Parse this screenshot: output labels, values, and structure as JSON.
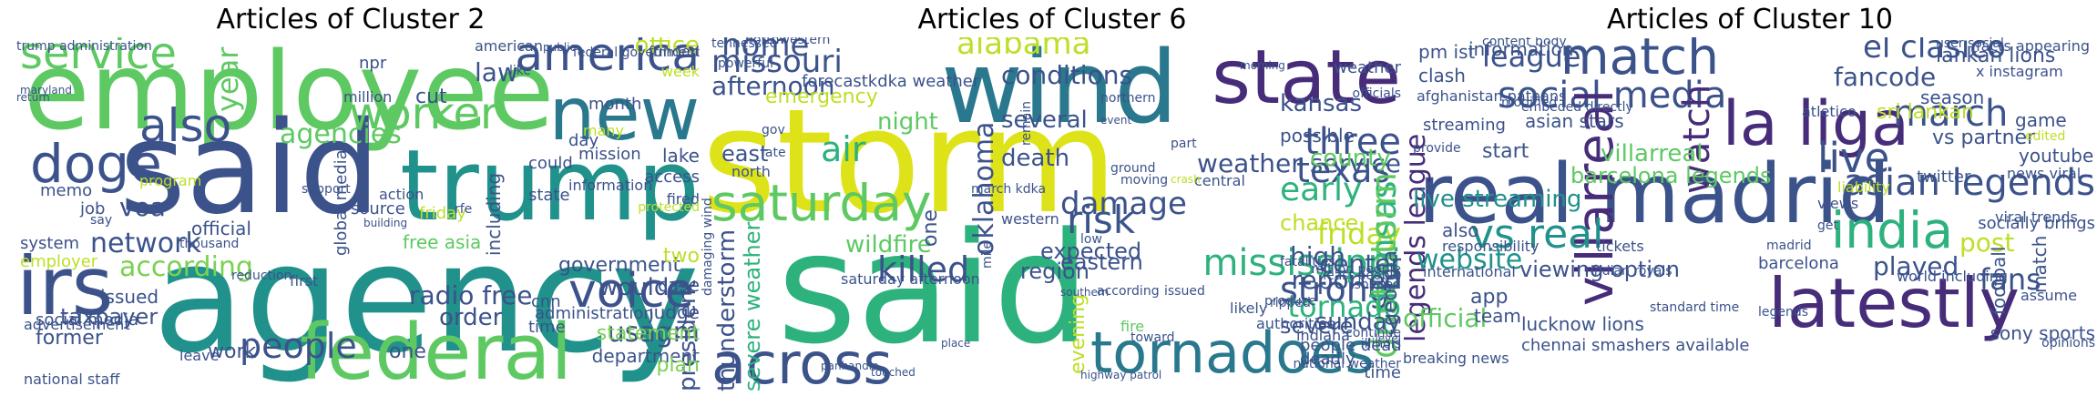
{
  "figure": {
    "panels": [
      {
        "title": "Articles of Cluster 2"
      },
      {
        "title": "Articles of Cluster 6"
      },
      {
        "title": "Articles of Cluster 10"
      }
    ]
  },
  "clouds": {
    "c2": [
      {
        "t": "employee",
        "c": "#5ec962"
      },
      {
        "t": "agency",
        "c": "#21918c"
      },
      {
        "t": "said",
        "c": "#3b528b"
      },
      {
        "t": "trump",
        "c": "#21918c"
      },
      {
        "t": "irs",
        "c": "#3b528b"
      },
      {
        "t": "federal",
        "c": "#5ec962"
      },
      {
        "t": "america",
        "c": "#3b528b"
      },
      {
        "t": "new",
        "c": "#2a788e"
      },
      {
        "t": "service",
        "c": "#5ec962"
      },
      {
        "t": "doge",
        "c": "#3b528b"
      },
      {
        "t": "worker",
        "c": "#5ec962"
      },
      {
        "t": "voice",
        "c": "#3b528b"
      },
      {
        "t": "people",
        "c": "#3b528b"
      },
      {
        "t": "also",
        "c": "#3b528b"
      },
      {
        "t": "government",
        "c": "#3b528b"
      },
      {
        "t": "network",
        "c": "#3b528b"
      },
      {
        "t": "according",
        "c": "#7ad151"
      },
      {
        "t": "agencies",
        "c": "#5ec962"
      },
      {
        "t": "law",
        "c": "#3b528b"
      },
      {
        "t": "office",
        "c": "#bddf26"
      },
      {
        "t": "radio free",
        "c": "#3b528b"
      },
      {
        "t": "order",
        "c": "#3b528b"
      },
      {
        "t": "usagm",
        "c": "#3b528b"
      },
      {
        "t": "would",
        "c": "#3b528b"
      },
      {
        "t": "voa",
        "c": "#3b528b"
      },
      {
        "t": "taxpayer",
        "c": "#3b528b"
      },
      {
        "t": "former",
        "c": "#3b528b"
      },
      {
        "t": "president",
        "c": "#3b528b"
      },
      {
        "t": "including",
        "c": "#3b528b"
      },
      {
        "t": "department",
        "c": "#3b528b"
      },
      {
        "t": "administration",
        "c": "#3b528b"
      },
      {
        "t": "work",
        "c": "#3b528b"
      },
      {
        "t": "one",
        "c": "#3b528b"
      },
      {
        "t": "plan",
        "c": "#7ad151"
      },
      {
        "t": "judge",
        "c": "#3b528b"
      },
      {
        "t": "statement",
        "c": "#7ad151"
      },
      {
        "t": "case",
        "c": "#3b528b"
      },
      {
        "t": "issued",
        "c": "#3b528b"
      },
      {
        "t": "job",
        "c": "#3b528b"
      },
      {
        "t": "memo",
        "c": "#3b528b"
      },
      {
        "t": "employer",
        "c": "#bddf26"
      },
      {
        "t": "system",
        "c": "#3b528b"
      },
      {
        "t": "social media",
        "c": "#3b528b"
      },
      {
        "t": "advertisement",
        "c": "#3b528b"
      },
      {
        "t": "national staff",
        "c": "#3b528b"
      },
      {
        "t": "leave",
        "c": "#3b528b"
      },
      {
        "t": "source",
        "c": "#3b528b"
      },
      {
        "t": "year",
        "c": "#5ec962"
      },
      {
        "t": "cut",
        "c": "#3b528b"
      },
      {
        "t": "month",
        "c": "#3b528b"
      },
      {
        "t": "day",
        "c": "#3b528b"
      },
      {
        "t": "could",
        "c": "#3b528b"
      },
      {
        "t": "state",
        "c": "#3b528b"
      },
      {
        "t": "mission",
        "c": "#3b528b"
      },
      {
        "t": "action",
        "c": "#3b528b"
      },
      {
        "t": "friday",
        "c": "#bddf26"
      },
      {
        "t": "fired",
        "c": "#3b528b"
      },
      {
        "t": "access",
        "c": "#3b528b"
      },
      {
        "t": "lake",
        "c": "#3b528b"
      },
      {
        "t": "two",
        "c": "#bddf26"
      },
      {
        "t": "time",
        "c": "#3b528b"
      },
      {
        "t": "cnn",
        "c": "#3b528b"
      },
      {
        "t": "free asia",
        "c": "#5ec962"
      },
      {
        "t": "global media",
        "c": "#3b528b"
      },
      {
        "t": "first",
        "c": "#3b528b"
      },
      {
        "t": "protected",
        "c": "#bddf26"
      },
      {
        "t": "official",
        "c": "#3b528b"
      },
      {
        "t": "program",
        "c": "#bddf26"
      },
      {
        "t": "american",
        "c": "#3b528b"
      },
      {
        "t": "million",
        "c": "#3b528b"
      },
      {
        "t": "thousand",
        "c": "#3b528b"
      },
      {
        "t": "trump administration",
        "c": "#3b528b"
      },
      {
        "t": "federal government",
        "c": "#3b528b"
      },
      {
        "t": "week",
        "c": "#bddf26"
      },
      {
        "t": "information",
        "c": "#3b528b"
      },
      {
        "t": "like",
        "c": "#3b528b"
      },
      {
        "t": "many",
        "c": "#bddf26"
      },
      {
        "t": "npr",
        "c": "#3b528b"
      },
      {
        "t": "funded",
        "c": "#3b528b"
      },
      {
        "t": "reduction",
        "c": "#3b528b"
      },
      {
        "t": "rfe",
        "c": "#3b528b"
      },
      {
        "t": "public",
        "c": "#3b528b"
      },
      {
        "t": "maryland",
        "c": "#3b528b"
      },
      {
        "t": "say",
        "c": "#3b528b"
      },
      {
        "t": "building",
        "c": "#3b528b"
      },
      {
        "t": "support",
        "c": "#3b528b"
      },
      {
        "t": "return",
        "c": "#3b528b"
      }
    ],
    "c6": [
      {
        "t": "storm",
        "c": "#dde318"
      },
      {
        "t": "said",
        "c": "#2db27d"
      },
      {
        "t": "wind",
        "c": "#2a788e"
      },
      {
        "t": "state",
        "c": "#472c7a"
      },
      {
        "t": "saturday",
        "c": "#5ec962"
      },
      {
        "t": "across",
        "c": "#3b528b"
      },
      {
        "t": "tornadoes",
        "c": "#2a788e"
      },
      {
        "t": "mississippi",
        "c": "#2db27d"
      },
      {
        "t": "texas",
        "c": "#3b528b"
      },
      {
        "t": "early",
        "c": "#2db27d"
      },
      {
        "t": "friday",
        "c": "#bddf26"
      },
      {
        "t": "three",
        "c": "#3b528b"
      },
      {
        "t": "strong",
        "c": "#3b528b"
      },
      {
        "t": "risk",
        "c": "#3b528b"
      },
      {
        "t": "killed",
        "c": "#3b528b"
      },
      {
        "t": "damage",
        "c": "#3b528b"
      },
      {
        "t": "air",
        "c": "#2db27d"
      },
      {
        "t": "home",
        "c": "#3b528b"
      },
      {
        "t": "alabama",
        "c": "#bddf26"
      },
      {
        "t": "missouri",
        "c": "#3b528b"
      },
      {
        "t": "afternoon",
        "c": "#3b528b"
      },
      {
        "t": "conditions",
        "c": "#3b528b"
      },
      {
        "t": "kansas",
        "c": "#3b528b"
      },
      {
        "t": "weather service",
        "c": "#3b528b"
      },
      {
        "t": "arkansas",
        "c": "#2db27d"
      },
      {
        "t": "dust storm",
        "c": "#5ec962"
      },
      {
        "t": "oklahoma",
        "c": "#3b528b"
      },
      {
        "t": "county",
        "c": "#5ec962"
      },
      {
        "t": "chance",
        "c": "#bddf26"
      },
      {
        "t": "high",
        "c": "#3b528b"
      },
      {
        "t": "center",
        "c": "#3b528b"
      },
      {
        "t": "tornado",
        "c": "#2db27d"
      },
      {
        "t": "reported",
        "c": "#3b528b"
      },
      {
        "t": "sunday",
        "c": "#3b528b"
      },
      {
        "t": "severe",
        "c": "#3b528b"
      },
      {
        "t": "expected",
        "c": "#3b528b"
      },
      {
        "t": "region",
        "c": "#3b528b"
      },
      {
        "t": "eastern",
        "c": "#3b528b"
      },
      {
        "t": "death",
        "c": "#3b528b"
      },
      {
        "t": "several",
        "c": "#3b528b"
      },
      {
        "t": "night",
        "c": "#5ec962"
      },
      {
        "t": "thunderstorm",
        "c": "#3b528b"
      },
      {
        "t": "severe weather",
        "c": "#2db27d"
      },
      {
        "t": "evening",
        "c": "#bddf26"
      },
      {
        "t": "wildfire",
        "c": "#5ec962"
      },
      {
        "t": "east",
        "c": "#3b528b"
      },
      {
        "t": "emergency",
        "c": "#bddf26"
      },
      {
        "t": "possible",
        "c": "#3b528b"
      },
      {
        "t": "one",
        "c": "#3b528b"
      },
      {
        "t": "georgia",
        "c": "#3b528b"
      },
      {
        "t": "deadly",
        "c": "#3b528b"
      },
      {
        "t": "time",
        "c": "#3b528b"
      },
      {
        "t": "north",
        "c": "#3b528b"
      },
      {
        "t": "weather",
        "c": "#3b528b"
      },
      {
        "t": "forecastkdka weather",
        "c": "#3b528b"
      },
      {
        "t": "tennessee",
        "c": "#3b528b"
      },
      {
        "t": "northwestern",
        "c": "#3b528b"
      },
      {
        "t": "powerful",
        "c": "#3b528b"
      },
      {
        "t": "saturday afternoon",
        "c": "#3b528b"
      },
      {
        "t": "people dead",
        "c": "#3b528b"
      },
      {
        "t": "illinois",
        "c": "#3b528b"
      },
      {
        "t": "indiana",
        "c": "#3b528b"
      },
      {
        "t": "authorities",
        "c": "#3b528b"
      },
      {
        "t": "likely",
        "c": "#3b528b"
      },
      {
        "t": "produce",
        "c": "#3b528b"
      },
      {
        "t": "toward",
        "c": "#3b528b"
      },
      {
        "t": "fire",
        "c": "#5ec962"
      },
      {
        "t": "gov",
        "c": "#3b528b"
      },
      {
        "t": "late",
        "c": "#3b528b"
      },
      {
        "t": "march kdka",
        "c": "#3b528b"
      },
      {
        "t": "moving",
        "c": "#3b528b"
      },
      {
        "t": "ground",
        "c": "#3b528b"
      },
      {
        "t": "central",
        "c": "#3b528b"
      },
      {
        "t": "part",
        "c": "#3b528b"
      },
      {
        "t": "western",
        "c": "#3b528b"
      },
      {
        "t": "low",
        "c": "#3b528b"
      },
      {
        "t": "ripped",
        "c": "#3b528b"
      },
      {
        "t": "isolated",
        "c": "#3b528b"
      },
      {
        "t": "least people",
        "c": "#3b528b"
      },
      {
        "t": "million people",
        "c": "#3b528b"
      },
      {
        "t": "continue",
        "c": "#3b528b"
      },
      {
        "t": "national weather",
        "c": "#3b528b"
      },
      {
        "t": "southern",
        "c": "#3b528b"
      },
      {
        "t": "officials",
        "c": "#3b528b"
      },
      {
        "t": "place",
        "c": "#3b528b"
      },
      {
        "t": "damaging wind",
        "c": "#3b528b"
      },
      {
        "t": "panhandle",
        "c": "#3b528b"
      },
      {
        "t": "highway patrol",
        "c": "#3b528b"
      },
      {
        "t": "touched",
        "c": "#3b528b"
      },
      {
        "t": "level",
        "c": "#3b528b"
      },
      {
        "t": "morning",
        "c": "#3b528b"
      },
      {
        "t": "northern",
        "c": "#3b528b"
      },
      {
        "t": "crash",
        "c": "#bddf26"
      },
      {
        "t": "event",
        "c": "#3b528b"
      },
      {
        "t": "remain",
        "c": "#3b528b"
      },
      {
        "t": "fatalities",
        "c": "#3b528b"
      },
      {
        "t": "issued",
        "c": "#3b528b"
      },
      {
        "t": "according",
        "c": "#3b528b"
      },
      {
        "t": "mile",
        "c": "#3b528b"
      }
    ],
    "c10": [
      {
        "t": "real madrid",
        "c": "#3b528b"
      },
      {
        "t": "la liga",
        "c": "#472c7a"
      },
      {
        "t": "latestly",
        "c": "#472c7a"
      },
      {
        "t": "match",
        "c": "#3b528b"
      },
      {
        "t": "social media",
        "c": "#3b528b"
      },
      {
        "t": "india",
        "c": "#2db27d"
      },
      {
        "t": "villarreal",
        "c": "#472c7a"
      },
      {
        "t": "vs real",
        "c": "#21918c"
      },
      {
        "t": "asian legends",
        "c": "#3b528b"
      },
      {
        "t": "legends league",
        "c": "#472c7a"
      },
      {
        "t": "live",
        "c": "#3b528b"
      },
      {
        "t": "march",
        "c": "#3b528b"
      },
      {
        "t": "el clasico",
        "c": "#3b528b"
      },
      {
        "t": "fancode",
        "c": "#3b528b"
      },
      {
        "t": "league",
        "c": "#3b528b"
      },
      {
        "t": "watch",
        "c": "#472c7a"
      },
      {
        "t": "fans",
        "c": "#3b528b"
      },
      {
        "t": "played",
        "c": "#3b528b"
      },
      {
        "t": "post",
        "c": "#bddf26"
      },
      {
        "t": "official",
        "c": "#5ec962"
      },
      {
        "t": "website",
        "c": "#21918c"
      },
      {
        "t": "viewing option",
        "c": "#3b528b"
      },
      {
        "t": "villarreal",
        "c": "#5ec962"
      },
      {
        "t": "live streaming",
        "c": "#21918c"
      },
      {
        "t": "barcelona legends",
        "c": "#5ec962"
      },
      {
        "t": "sri lankan",
        "c": "#bddf26"
      },
      {
        "t": "vs partner",
        "c": "#3b528b"
      },
      {
        "t": "season",
        "c": "#3b528b"
      },
      {
        "t": "lankan lions",
        "c": "#3b528b"
      },
      {
        "t": "game",
        "c": "#3b528b"
      },
      {
        "t": "youtube",
        "c": "#3b528b"
      },
      {
        "t": "sony sports",
        "c": "#3b528b"
      },
      {
        "t": "chennai smashers available",
        "c": "#3b528b"
      },
      {
        "t": "lucknow lions",
        "c": "#3b528b"
      },
      {
        "t": "information",
        "c": "#3b528b"
      },
      {
        "t": "clash",
        "c": "#3b528b"
      },
      {
        "t": "asian stars",
        "c": "#3b528b"
      },
      {
        "t": "streaming",
        "c": "#3b528b"
      },
      {
        "t": "start",
        "c": "#3b528b"
      },
      {
        "t": "also",
        "c": "#3b528b"
      },
      {
        "t": "app",
        "c": "#3b528b"
      },
      {
        "t": "team",
        "c": "#3b528b"
      },
      {
        "t": "pm ist",
        "c": "#3b528b"
      },
      {
        "t": "football",
        "c": "#3b528b"
      },
      {
        "t": "match",
        "c": "#3b528b"
      },
      {
        "t": "twitter",
        "c": "#3b528b"
      },
      {
        "t": "news viral",
        "c": "#3b528b"
      },
      {
        "t": "viral trends",
        "c": "#3b528b"
      },
      {
        "t": "socially brings",
        "c": "#3b528b"
      },
      {
        "t": "barcelona",
        "c": "#3b528b"
      },
      {
        "t": "madrid",
        "c": "#3b528b"
      },
      {
        "t": "responsibility",
        "c": "#3b528b"
      },
      {
        "t": "international",
        "c": "#3b528b"
      },
      {
        "t": "tickets",
        "c": "#3b528b"
      },
      {
        "t": "world including",
        "c": "#3b528b"
      },
      {
        "t": "facts appearing",
        "c": "#3b528b"
      },
      {
        "t": "x instagram",
        "c": "#3b528b"
      },
      {
        "t": "content body",
        "c": "#3b528b"
      },
      {
        "t": "user social",
        "c": "#3b528b"
      },
      {
        "t": "afghanistan pathans",
        "c": "#3b528b"
      },
      {
        "t": "embeded directly",
        "c": "#3b528b"
      },
      {
        "t": "breaking news",
        "c": "#3b528b"
      },
      {
        "t": "opinions",
        "c": "#3b528b"
      },
      {
        "t": "assume",
        "c": "#3b528b"
      },
      {
        "t": "legends",
        "c": "#3b528b"
      },
      {
        "t": "edited",
        "c": "#bddf26"
      },
      {
        "t": "provide",
        "c": "#3b528b"
      },
      {
        "t": "modified",
        "c": "#3b528b"
      },
      {
        "t": "atletico",
        "c": "#3b528b"
      },
      {
        "t": "views",
        "c": "#3b528b"
      },
      {
        "t": "get",
        "c": "#3b528b"
      },
      {
        "t": "liability",
        "c": "#bddf26"
      },
      {
        "t": "standard time",
        "c": "#3b528b"
      },
      {
        "t": "indian royals",
        "c": "#3b528b"
      }
    ]
  }
}
